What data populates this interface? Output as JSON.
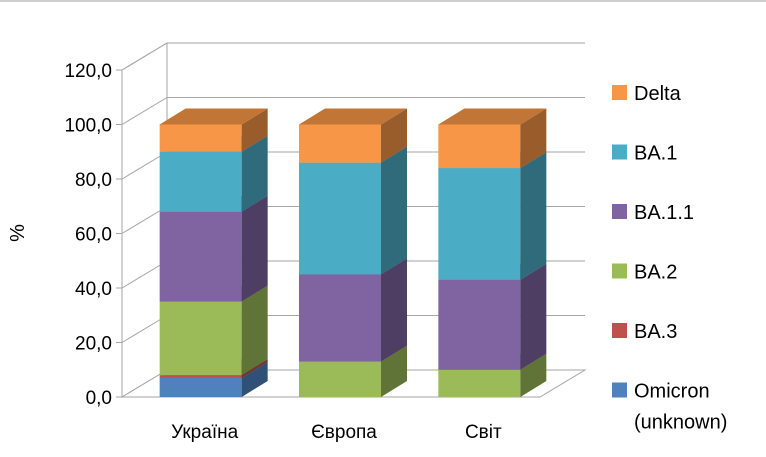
{
  "chart_data": {
    "type": "bar",
    "stacked": true,
    "three_d": true,
    "ylabel": "%",
    "ylim": [
      0,
      120
    ],
    "yticks": [
      "0,0",
      "20,0",
      "40,0",
      "60,0",
      "80,0",
      "100,0",
      "120,0"
    ],
    "grid": true,
    "legend_position": "right",
    "categories": [
      "Україна",
      "Європа",
      "Світ"
    ],
    "series": [
      {
        "name": "Omicron (unknown)",
        "legend_lines": [
          "Omicron",
          "(unknown)"
        ],
        "color": "#4F81BD",
        "values": [
          7,
          0,
          0
        ]
      },
      {
        "name": "BA.3",
        "legend_lines": [
          "BA.3"
        ],
        "color": "#C0504D",
        "values": [
          1,
          0,
          0
        ]
      },
      {
        "name": "BA.2",
        "legend_lines": [
          "BA.2"
        ],
        "color": "#9BBB59",
        "values": [
          27,
          13,
          10
        ]
      },
      {
        "name": "BA.1.1",
        "legend_lines": [
          "BA.1.1"
        ],
        "color": "#8064A2",
        "values": [
          33,
          32,
          33
        ]
      },
      {
        "name": "BA.1",
        "legend_lines": [
          "BA.1"
        ],
        "color": "#4BACC6",
        "values": [
          22,
          41,
          41
        ]
      },
      {
        "name": "Delta",
        "legend_lines": [
          "Delta"
        ],
        "color": "#F79646",
        "values": [
          10,
          14,
          16
        ]
      }
    ]
  }
}
